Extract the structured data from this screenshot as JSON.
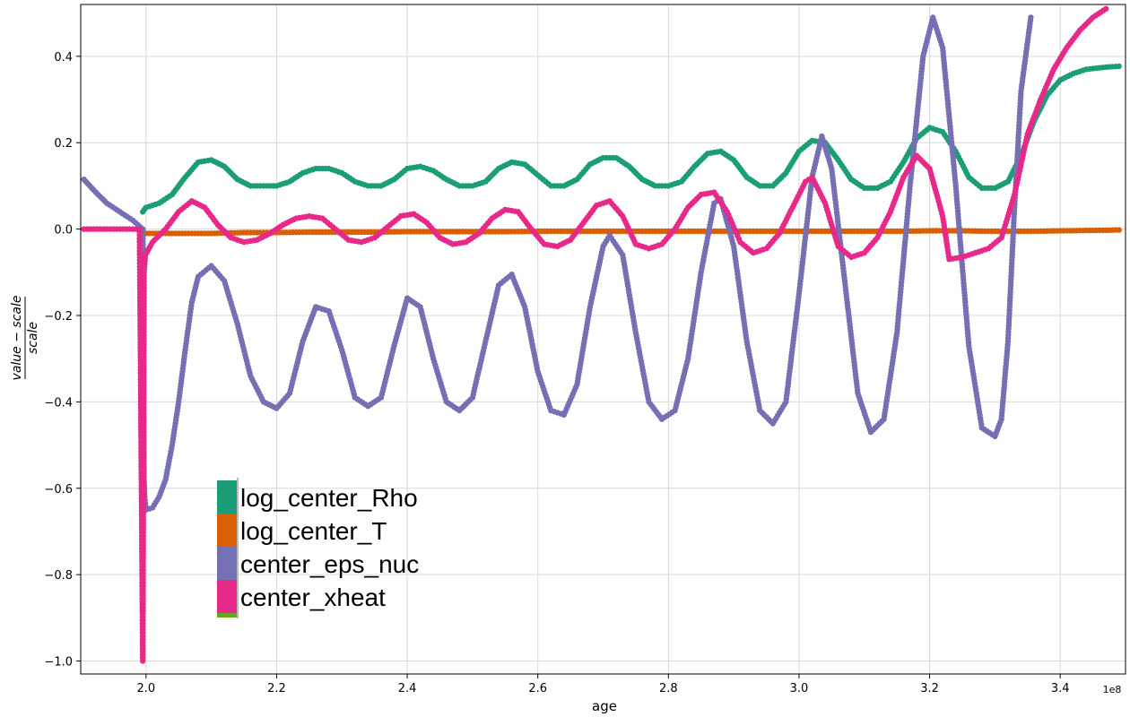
{
  "chart_data": {
    "type": "scatter",
    "xlabel": "age",
    "ylabel_numerator": "value − scale",
    "ylabel_denominator": "scale",
    "x_offset_label": "1e8",
    "xlim": [
      1.9,
      3.5
    ],
    "ylim": [
      -1.03,
      0.52
    ],
    "x_unit_scale": 100000000,
    "xticks": [
      2.0,
      2.2,
      2.4,
      2.6,
      2.8,
      3.0,
      3.2,
      3.4
    ],
    "xtick_labels": [
      "2.0",
      "2.2",
      "2.4",
      "2.6",
      "2.8",
      "3.0",
      "3.2",
      "3.4"
    ],
    "yticks": [
      0.4,
      0.2,
      0.0,
      -0.2,
      -0.4,
      -0.6,
      -0.8,
      -1.0
    ],
    "ytick_labels": [
      "0.4",
      "0.2",
      "0.0",
      "−0.2",
      "−0.4",
      "−0.6",
      "−0.8",
      "−1.0"
    ],
    "grid": true,
    "legend_position": "lower-left",
    "series": [
      {
        "name": "log_center_Rho",
        "color": "#1b9e77",
        "points": [
          [
            1.995,
            0.04
          ],
          [
            2.0,
            0.05
          ],
          [
            2.02,
            0.06
          ],
          [
            2.04,
            0.08
          ],
          [
            2.06,
            0.12
          ],
          [
            2.08,
            0.155
          ],
          [
            2.1,
            0.16
          ],
          [
            2.12,
            0.145
          ],
          [
            2.14,
            0.115
          ],
          [
            2.16,
            0.1
          ],
          [
            2.18,
            0.1
          ],
          [
            2.2,
            0.1
          ],
          [
            2.22,
            0.11
          ],
          [
            2.24,
            0.13
          ],
          [
            2.26,
            0.14
          ],
          [
            2.28,
            0.14
          ],
          [
            2.3,
            0.13
          ],
          [
            2.32,
            0.11
          ],
          [
            2.34,
            0.1
          ],
          [
            2.36,
            0.1
          ],
          [
            2.38,
            0.115
          ],
          [
            2.4,
            0.14
          ],
          [
            2.42,
            0.145
          ],
          [
            2.44,
            0.135
          ],
          [
            2.46,
            0.115
          ],
          [
            2.48,
            0.1
          ],
          [
            2.5,
            0.1
          ],
          [
            2.52,
            0.11
          ],
          [
            2.54,
            0.14
          ],
          [
            2.56,
            0.155
          ],
          [
            2.58,
            0.15
          ],
          [
            2.6,
            0.125
          ],
          [
            2.62,
            0.1
          ],
          [
            2.64,
            0.1
          ],
          [
            2.66,
            0.115
          ],
          [
            2.68,
            0.15
          ],
          [
            2.7,
            0.165
          ],
          [
            2.72,
            0.165
          ],
          [
            2.74,
            0.145
          ],
          [
            2.76,
            0.115
          ],
          [
            2.78,
            0.1
          ],
          [
            2.8,
            0.1
          ],
          [
            2.82,
            0.11
          ],
          [
            2.84,
            0.145
          ],
          [
            2.86,
            0.175
          ],
          [
            2.88,
            0.18
          ],
          [
            2.9,
            0.16
          ],
          [
            2.92,
            0.12
          ],
          [
            2.94,
            0.1
          ],
          [
            2.96,
            0.1
          ],
          [
            2.98,
            0.13
          ],
          [
            3.0,
            0.18
          ],
          [
            3.02,
            0.205
          ],
          [
            3.04,
            0.2
          ],
          [
            3.06,
            0.16
          ],
          [
            3.08,
            0.115
          ],
          [
            3.1,
            0.095
          ],
          [
            3.12,
            0.095
          ],
          [
            3.14,
            0.11
          ],
          [
            3.16,
            0.155
          ],
          [
            3.18,
            0.21
          ],
          [
            3.2,
            0.235
          ],
          [
            3.22,
            0.225
          ],
          [
            3.24,
            0.18
          ],
          [
            3.26,
            0.12
          ],
          [
            3.28,
            0.095
          ],
          [
            3.3,
            0.095
          ],
          [
            3.32,
            0.11
          ],
          [
            3.34,
            0.17
          ],
          [
            3.36,
            0.25
          ],
          [
            3.38,
            0.31
          ],
          [
            3.4,
            0.345
          ],
          [
            3.42,
            0.36
          ],
          [
            3.44,
            0.37
          ],
          [
            3.47,
            0.375
          ],
          [
            3.49,
            0.377
          ]
        ]
      },
      {
        "name": "log_center_T",
        "color": "#d95f02",
        "points": [
          [
            1.99,
            0.0
          ],
          [
            2.0,
            -0.01
          ],
          [
            2.05,
            -0.01
          ],
          [
            2.1,
            -0.01
          ],
          [
            2.15,
            -0.008
          ],
          [
            2.2,
            -0.008
          ],
          [
            2.25,
            -0.007
          ],
          [
            2.3,
            -0.007
          ],
          [
            2.35,
            -0.007
          ],
          [
            2.4,
            -0.006
          ],
          [
            2.45,
            -0.006
          ],
          [
            2.5,
            -0.006
          ],
          [
            2.55,
            -0.006
          ],
          [
            2.6,
            -0.005
          ],
          [
            2.65,
            -0.005
          ],
          [
            2.7,
            -0.005
          ],
          [
            2.75,
            -0.005
          ],
          [
            2.8,
            -0.005
          ],
          [
            2.85,
            -0.005
          ],
          [
            2.9,
            -0.005
          ],
          [
            2.95,
            -0.005
          ],
          [
            3.0,
            -0.005
          ],
          [
            3.05,
            -0.005
          ],
          [
            3.1,
            -0.005
          ],
          [
            3.15,
            -0.005
          ],
          [
            3.2,
            -0.004
          ],
          [
            3.25,
            -0.004
          ],
          [
            3.3,
            -0.005
          ],
          [
            3.35,
            -0.005
          ],
          [
            3.4,
            -0.004
          ],
          [
            3.45,
            -0.003
          ],
          [
            3.49,
            -0.002
          ]
        ]
      },
      {
        "name": "center_eps_nuc",
        "color": "#7570b3",
        "points": [
          [
            1.905,
            0.115
          ],
          [
            1.92,
            0.09
          ],
          [
            1.94,
            0.06
          ],
          [
            1.96,
            0.04
          ],
          [
            1.98,
            0.02
          ],
          [
            1.995,
            0.0
          ],
          [
            1.997,
            -0.58
          ],
          [
            1.998,
            -0.62
          ],
          [
            2.0,
            -0.65
          ],
          [
            2.01,
            -0.645
          ],
          [
            2.02,
            -0.62
          ],
          [
            2.03,
            -0.58
          ],
          [
            2.04,
            -0.5
          ],
          [
            2.05,
            -0.4
          ],
          [
            2.06,
            -0.28
          ],
          [
            2.07,
            -0.17
          ],
          [
            2.08,
            -0.11
          ],
          [
            2.1,
            -0.085
          ],
          [
            2.12,
            -0.12
          ],
          [
            2.14,
            -0.22
          ],
          [
            2.16,
            -0.34
          ],
          [
            2.18,
            -0.4
          ],
          [
            2.2,
            -0.415
          ],
          [
            2.22,
            -0.38
          ],
          [
            2.24,
            -0.26
          ],
          [
            2.26,
            -0.18
          ],
          [
            2.28,
            -0.19
          ],
          [
            2.3,
            -0.28
          ],
          [
            2.32,
            -0.39
          ],
          [
            2.34,
            -0.41
          ],
          [
            2.36,
            -0.39
          ],
          [
            2.38,
            -0.27
          ],
          [
            2.4,
            -0.16
          ],
          [
            2.42,
            -0.18
          ],
          [
            2.44,
            -0.3
          ],
          [
            2.46,
            -0.4
          ],
          [
            2.48,
            -0.42
          ],
          [
            2.5,
            -0.39
          ],
          [
            2.52,
            -0.26
          ],
          [
            2.54,
            -0.13
          ],
          [
            2.56,
            -0.105
          ],
          [
            2.58,
            -0.18
          ],
          [
            2.6,
            -0.33
          ],
          [
            2.62,
            -0.42
          ],
          [
            2.64,
            -0.43
          ],
          [
            2.66,
            -0.36
          ],
          [
            2.68,
            -0.18
          ],
          [
            2.7,
            -0.04
          ],
          [
            2.71,
            -0.015
          ],
          [
            2.73,
            -0.06
          ],
          [
            2.75,
            -0.24
          ],
          [
            2.77,
            -0.4
          ],
          [
            2.79,
            -0.44
          ],
          [
            2.81,
            -0.42
          ],
          [
            2.83,
            -0.3
          ],
          [
            2.85,
            -0.1
          ],
          [
            2.87,
            0.06
          ],
          [
            2.88,
            0.07
          ],
          [
            2.9,
            -0.04
          ],
          [
            2.92,
            -0.26
          ],
          [
            2.94,
            -0.42
          ],
          [
            2.96,
            -0.45
          ],
          [
            2.98,
            -0.4
          ],
          [
            3.0,
            -0.15
          ],
          [
            3.02,
            0.12
          ],
          [
            3.035,
            0.215
          ],
          [
            3.05,
            0.14
          ],
          [
            3.07,
            -0.12
          ],
          [
            3.09,
            -0.38
          ],
          [
            3.11,
            -0.47
          ],
          [
            3.13,
            -0.44
          ],
          [
            3.15,
            -0.24
          ],
          [
            3.17,
            0.1
          ],
          [
            3.19,
            0.4
          ],
          [
            3.205,
            0.49
          ],
          [
            3.22,
            0.42
          ],
          [
            3.24,
            0.1
          ],
          [
            3.26,
            -0.27
          ],
          [
            3.28,
            -0.46
          ],
          [
            3.3,
            -0.48
          ],
          [
            3.31,
            -0.44
          ],
          [
            3.32,
            -0.26
          ],
          [
            3.33,
            0.05
          ],
          [
            3.34,
            0.32
          ],
          [
            3.355,
            0.49
          ]
        ]
      },
      {
        "name": "center_xheat",
        "color": "#e7298a",
        "points": [
          [
            1.905,
            0.0
          ],
          [
            1.93,
            0.0
          ],
          [
            1.96,
            0.0
          ],
          [
            1.99,
            0.0
          ],
          [
            1.995,
            -1.0
          ],
          [
            1.997,
            -0.1
          ],
          [
            1.999,
            -0.06
          ],
          [
            2.01,
            -0.03
          ],
          [
            2.03,
            0.0
          ],
          [
            2.05,
            0.04
          ],
          [
            2.07,
            0.065
          ],
          [
            2.09,
            0.05
          ],
          [
            2.11,
            0.01
          ],
          [
            2.13,
            -0.02
          ],
          [
            2.15,
            -0.03
          ],
          [
            2.17,
            -0.025
          ],
          [
            2.19,
            -0.01
          ],
          [
            2.21,
            0.01
          ],
          [
            2.23,
            0.025
          ],
          [
            2.25,
            0.03
          ],
          [
            2.27,
            0.025
          ],
          [
            2.29,
            0.0
          ],
          [
            2.31,
            -0.025
          ],
          [
            2.33,
            -0.03
          ],
          [
            2.35,
            -0.02
          ],
          [
            2.37,
            0.005
          ],
          [
            2.39,
            0.03
          ],
          [
            2.41,
            0.035
          ],
          [
            2.43,
            0.015
          ],
          [
            2.45,
            -0.02
          ],
          [
            2.47,
            -0.035
          ],
          [
            2.49,
            -0.03
          ],
          [
            2.51,
            -0.01
          ],
          [
            2.53,
            0.025
          ],
          [
            2.55,
            0.045
          ],
          [
            2.57,
            0.04
          ],
          [
            2.59,
            0.0
          ],
          [
            2.61,
            -0.035
          ],
          [
            2.63,
            -0.04
          ],
          [
            2.65,
            -0.025
          ],
          [
            2.67,
            0.015
          ],
          [
            2.69,
            0.055
          ],
          [
            2.71,
            0.065
          ],
          [
            2.73,
            0.03
          ],
          [
            2.75,
            -0.035
          ],
          [
            2.77,
            -0.045
          ],
          [
            2.79,
            -0.035
          ],
          [
            2.81,
            0.0
          ],
          [
            2.83,
            0.05
          ],
          [
            2.85,
            0.08
          ],
          [
            2.87,
            0.085
          ],
          [
            2.89,
            0.04
          ],
          [
            2.91,
            -0.03
          ],
          [
            2.93,
            -0.055
          ],
          [
            2.95,
            -0.045
          ],
          [
            2.97,
            -0.01
          ],
          [
            2.99,
            0.05
          ],
          [
            3.01,
            0.11
          ],
          [
            3.02,
            0.12
          ],
          [
            3.04,
            0.06
          ],
          [
            3.06,
            -0.04
          ],
          [
            3.08,
            -0.065
          ],
          [
            3.1,
            -0.055
          ],
          [
            3.12,
            -0.02
          ],
          [
            3.14,
            0.04
          ],
          [
            3.16,
            0.12
          ],
          [
            3.18,
            0.17
          ],
          [
            3.2,
            0.14
          ],
          [
            3.22,
            0.03
          ],
          [
            3.23,
            -0.07
          ],
          [
            3.25,
            -0.065
          ],
          [
            3.27,
            -0.055
          ],
          [
            3.29,
            -0.045
          ],
          [
            3.31,
            -0.02
          ],
          [
            3.33,
            0.08
          ],
          [
            3.35,
            0.22
          ],
          [
            3.37,
            0.3
          ],
          [
            3.39,
            0.37
          ],
          [
            3.41,
            0.42
          ],
          [
            3.43,
            0.46
          ],
          [
            3.45,
            0.49
          ],
          [
            3.47,
            0.51
          ]
        ]
      }
    ]
  }
}
